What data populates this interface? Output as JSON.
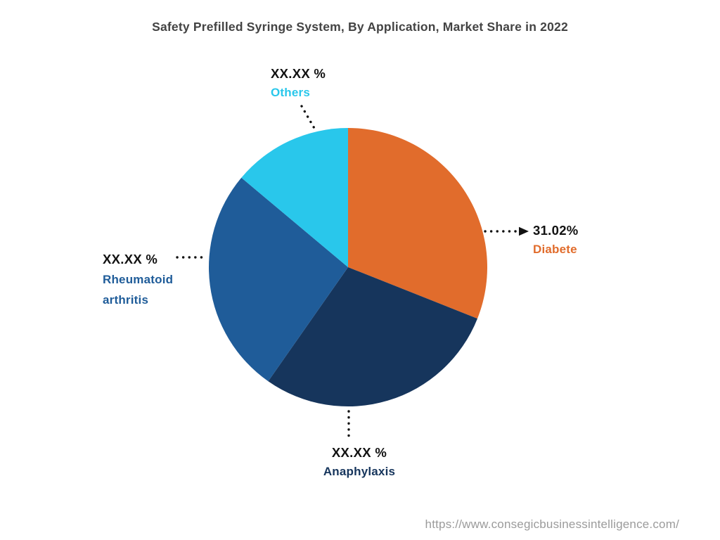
{
  "title": "Safety Prefilled Syringe System, By Application, Market Share in 2022",
  "footer": {
    "source_url": "https://www.consegicbusinessintelligence.com/"
  },
  "chart_data": {
    "type": "pie",
    "title": "Safety Prefilled Syringe System, By Application, Market Share in 2022",
    "start_angle_deg_from_top": 0,
    "direction": "clockwise",
    "slices": [
      {
        "label": "Diabete",
        "display_value": "31.02%",
        "value": 31.02,
        "color": "#E16C2C"
      },
      {
        "label": "Anaphylaxis",
        "display_value": "XX.XX %",
        "value": 28.7,
        "color": "#16355C"
      },
      {
        "label": "Rheumatoid arthritis",
        "display_value": "XX.XX %",
        "value": 26.39,
        "color": "#1F5C99"
      },
      {
        "label": "Others",
        "display_value": "XX.XX %",
        "value": 13.89,
        "color": "#29C7EB"
      }
    ]
  },
  "callouts": {
    "others": {
      "value": "XX.XX %",
      "label": "Others"
    },
    "diabete": {
      "value": "31.02%",
      "label": "Diabete"
    },
    "rheumatoid": {
      "value": "XX.XX %",
      "label_line1": "Rheumatoid",
      "label_line2": "arthritis"
    },
    "anaphylaxis": {
      "value": "XX.XX %",
      "label": "Anaphylaxis"
    }
  },
  "colors": {
    "diabete": "#E16C2C",
    "anaphylaxis": "#16355C",
    "rheumatoid_arthritis": "#1F5C99",
    "others": "#29C7EB",
    "title_text": "#434343",
    "value_text": "#121212",
    "source_text": "#9b9b9b"
  }
}
